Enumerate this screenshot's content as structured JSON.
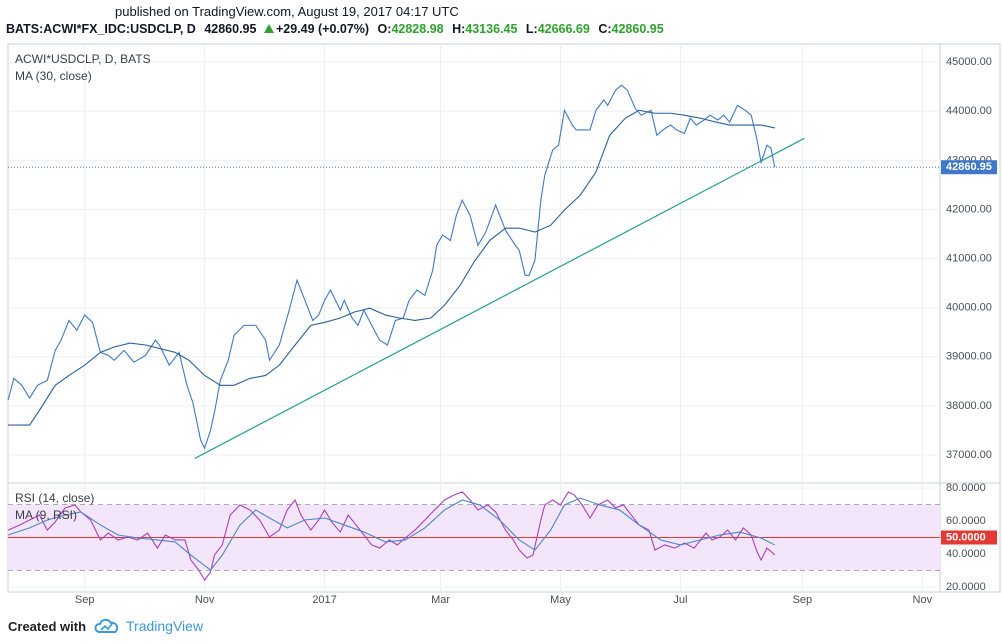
{
  "header": {
    "published": "published on TradingView.com, August 19, 2017 04:17 UTC",
    "symbol": "BATS:ACWI*FX_IDC:USDCLP, D",
    "last": "42860.95",
    "change": "+29.49 (+0.07%)",
    "ohlc": [
      {
        "label": "O:",
        "value": "42828.98"
      },
      {
        "label": "H:",
        "value": "43136.45"
      },
      {
        "label": "L:",
        "value": "42666.69"
      },
      {
        "label": "C:",
        "value": "42860.95"
      }
    ]
  },
  "footer": {
    "created": "Created with",
    "brand": "TradingView"
  },
  "chart_data": [
    {
      "type": "line",
      "grid": true,
      "xlim": [
        -39,
        435
      ],
      "ylim": [
        36430,
        45370
      ],
      "yticks": [
        {
          "value": 37000,
          "label": "37000.00"
        },
        {
          "value": 38000,
          "label": "38000.00"
        },
        {
          "value": 39000,
          "label": "39000.00"
        },
        {
          "value": 40000,
          "label": "40000.00"
        },
        {
          "value": 41000,
          "label": "41000.00"
        },
        {
          "value": 42000,
          "label": "42000.00"
        },
        {
          "value": 43000,
          "label": "43000.00"
        },
        {
          "value": 44000,
          "label": "44000.00"
        },
        {
          "value": 45000,
          "label": "45000.00"
        }
      ],
      "last_value": {
        "value": 42860.95,
        "label": "42860.95",
        "color": "#3f78c9"
      },
      "trend_line": {
        "color": "#26a08e",
        "x": [
          56,
          366
        ],
        "values": [
          36930,
          43450
        ]
      },
      "series": [
        {
          "name": "ACWI*USDCLP, D, BATS",
          "color": "#3f78c9",
          "x": [
            -39,
            -36,
            -32,
            -28,
            -24,
            -19,
            -15,
            -12,
            -8,
            -4,
            0,
            4,
            8,
            12,
            15,
            20,
            25,
            31,
            36,
            38,
            43,
            48,
            52,
            55,
            59,
            61,
            64,
            66,
            69,
            73,
            76,
            81,
            87,
            92,
            94,
            99,
            104,
            108,
            112,
            116,
            119,
            122,
            125,
            130,
            132,
            136,
            139,
            142,
            146,
            150,
            154,
            158,
            162,
            165,
            169,
            173,
            177,
            179,
            182,
            186,
            189,
            192,
            196,
            200,
            204,
            209,
            214,
            219,
            221,
            224,
            226,
            229,
            232,
            234,
            238,
            241,
            244,
            248,
            250,
            253,
            257,
            260,
            264,
            266,
            270,
            273,
            276,
            280,
            283,
            288,
            291,
            294,
            298,
            301,
            305,
            308,
            311,
            315,
            318,
            322,
            325,
            328,
            332,
            336,
            339,
            342,
            344,
            347,
            349,
            351
          ],
          "values": [
            38120,
            38560,
            38420,
            38160,
            38420,
            38520,
            39130,
            39340,
            39740,
            39540,
            39850,
            39700,
            39090,
            39030,
            38930,
            39130,
            38890,
            39030,
            39340,
            39240,
            38830,
            39090,
            38420,
            38070,
            37300,
            37140,
            37500,
            37870,
            38520,
            38930,
            39440,
            39640,
            39640,
            39340,
            38930,
            39240,
            39950,
            40560,
            40150,
            39740,
            39850,
            40150,
            40360,
            39950,
            40150,
            39790,
            39640,
            39950,
            39640,
            39340,
            39240,
            39740,
            39790,
            40150,
            40360,
            40250,
            40760,
            41270,
            41480,
            41370,
            41880,
            42190,
            41880,
            41270,
            41540,
            42090,
            41580,
            41270,
            41170,
            40660,
            40660,
            40970,
            42190,
            42700,
            43210,
            43310,
            44020,
            43720,
            43620,
            43620,
            43620,
            44020,
            44230,
            44120,
            44430,
            44530,
            44430,
            44060,
            43920,
            44020,
            43510,
            43620,
            43720,
            43620,
            43550,
            43860,
            43720,
            43820,
            43920,
            43820,
            43920,
            43780,
            44120,
            44020,
            43920,
            43410,
            42960,
            43310,
            43250,
            42860.95
          ]
        },
        {
          "name": "MA (30, close)",
          "color": "#2b5f9a",
          "x": [
            -39,
            -28,
            -23,
            -15,
            -8,
            0,
            8,
            15,
            23,
            31,
            38,
            46,
            53,
            61,
            69,
            76,
            84,
            92,
            99,
            107,
            115,
            122,
            130,
            137,
            145,
            153,
            160,
            168,
            176,
            183,
            191,
            198,
            206,
            214,
            221,
            229,
            237,
            244,
            252,
            260,
            267,
            275,
            282,
            290,
            298,
            305,
            313,
            321,
            328,
            336,
            344,
            351
          ],
          "values": [
            37610,
            37610,
            37910,
            38420,
            38620,
            38830,
            39090,
            39200,
            39280,
            39240,
            39170,
            39090,
            38930,
            38620,
            38420,
            38420,
            38560,
            38620,
            38830,
            39240,
            39640,
            39700,
            39790,
            39910,
            39990,
            39850,
            39790,
            39740,
            39790,
            40050,
            40460,
            40930,
            41370,
            41620,
            41620,
            41540,
            41680,
            41990,
            42290,
            42760,
            43510,
            43860,
            44020,
            43960,
            43960,
            43920,
            43860,
            43780,
            43720,
            43720,
            43720,
            43660
          ]
        }
      ]
    },
    {
      "type": "line",
      "grid": true,
      "xlim": [
        -39,
        435
      ],
      "ylim": [
        17,
        83
      ],
      "xticks": [
        {
          "value": 0,
          "label": "Sep"
        },
        {
          "value": 61,
          "label": "Nov"
        },
        {
          "value": 122,
          "label": "2017"
        },
        {
          "value": 181,
          "label": "Mar"
        },
        {
          "value": 242,
          "label": "May"
        },
        {
          "value": 303,
          "label": "Jul"
        },
        {
          "value": 365,
          "label": "Sep"
        },
        {
          "value": 426,
          "label": "Nov"
        }
      ],
      "yticks": [
        {
          "value": 20,
          "label": "20.0000"
        },
        {
          "value": 40,
          "label": "40.0000"
        },
        {
          "value": 60,
          "label": "60.0000"
        },
        {
          "value": 80,
          "label": "80.0000"
        }
      ],
      "band": [
        30,
        70
      ],
      "band_color": "#f4e6fa",
      "midline": {
        "value": 50,
        "label": "50.0000",
        "color": "#e53935"
      },
      "series": [
        {
          "name": "RSI (14, close)",
          "color": "#ab3fbf",
          "x": [
            -39,
            -33,
            -28,
            -23,
            -19,
            -15,
            -10,
            -5,
            -2,
            3,
            8,
            12,
            17,
            22,
            27,
            32,
            37,
            41,
            46,
            51,
            54,
            58,
            61,
            64,
            66,
            70,
            74,
            79,
            84,
            89,
            94,
            99,
            103,
            107,
            110,
            115,
            119,
            122,
            126,
            130,
            134,
            138,
            142,
            146,
            150,
            155,
            159,
            163,
            168,
            173,
            178,
            183,
            188,
            192,
            196,
            200,
            205,
            209,
            214,
            218,
            221,
            225,
            228,
            232,
            234,
            238,
            242,
            246,
            249,
            253,
            257,
            261,
            266,
            270,
            274,
            278,
            282,
            287,
            290,
            295,
            300,
            305,
            310,
            316,
            319,
            323,
            327,
            331,
            335,
            339,
            342,
            344,
            347,
            350,
            351
          ],
          "values": [
            54.5,
            57.6,
            60.6,
            63.6,
            54.5,
            59.4,
            67.9,
            69.7,
            65.5,
            60.6,
            48.5,
            52.7,
            48.5,
            50.3,
            48.5,
            52.7,
            43.6,
            51.5,
            48.5,
            48.5,
            36.4,
            30.3,
            24.2,
            29.1,
            39.4,
            45.5,
            63.6,
            69.7,
            66.7,
            60.6,
            50.3,
            54.5,
            66.7,
            72.7,
            63.6,
            54.5,
            60.6,
            66.7,
            58.8,
            53.3,
            63.6,
            57.6,
            51.5,
            45.5,
            43.6,
            48.5,
            45.5,
            49.7,
            54.5,
            60.6,
            66.7,
            72.7,
            75.8,
            77.6,
            72.7,
            66.7,
            69.7,
            65.5,
            54.5,
            48.5,
            42.4,
            37.6,
            39.4,
            60.6,
            69.7,
            72.7,
            69.7,
            77.6,
            75.8,
            69.7,
            61.8,
            69.7,
            72.7,
            67.9,
            69.7,
            63.6,
            57.6,
            54.5,
            42.4,
            45.5,
            43.6,
            46.7,
            43.6,
            52.7,
            48.5,
            50.3,
            54.5,
            48.5,
            55.8,
            51.5,
            41.2,
            36.4,
            43.6,
            40.6,
            39.4
          ]
        },
        {
          "name": "MA (9, RSI)",
          "color": "#4a86c8",
          "x": [
            -39,
            -28,
            -19,
            -10,
            -2,
            8,
            17,
            27,
            37,
            46,
            54,
            64,
            70,
            79,
            87,
            94,
            103,
            112,
            122,
            132,
            142,
            153,
            163,
            173,
            183,
            192,
            201,
            211,
            221,
            229,
            237,
            244,
            252,
            262,
            272,
            282,
            293,
            303,
            313,
            323,
            333,
            344,
            351
          ],
          "values": [
            51.5,
            55.8,
            60.6,
            63.6,
            65.5,
            57.6,
            51.5,
            49.7,
            48.5,
            47.3,
            39.4,
            30.3,
            39.4,
            57.6,
            66.7,
            61.8,
            55.8,
            60.6,
            61.8,
            57.6,
            53.3,
            47.3,
            48.5,
            55.8,
            66.7,
            72.7,
            69.7,
            60.6,
            48.5,
            42.4,
            54.5,
            69.7,
            73.9,
            69.7,
            66.7,
            57.6,
            48.5,
            45.5,
            48.5,
            51.5,
            53.3,
            49.7,
            45.5
          ]
        }
      ]
    }
  ]
}
